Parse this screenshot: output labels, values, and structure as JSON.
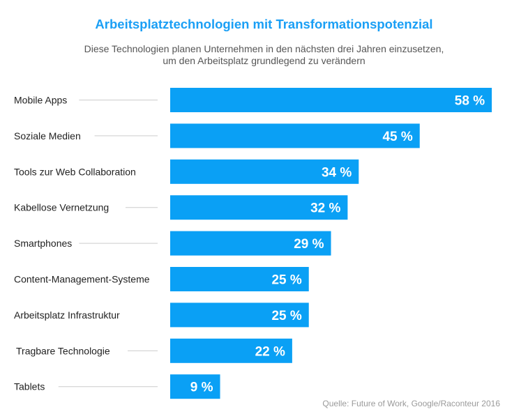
{
  "chart_data": {
    "type": "bar",
    "orientation": "horizontal",
    "title": "Arbeitsplatztechnologien mit Transformationspotenzial",
    "subtitle": [
      "Diese Technologien planen Unternehmen in den nächsten drei Jahren einzusetzen,",
      "um den Arbeitsplatz grundlegend zu verändern"
    ],
    "categories": [
      "Mobile Apps",
      "Soziale Medien",
      "Tools zur Web Collaboration",
      "Kabellose Vernetzung",
      "Smartphones",
      "Content-Management-Systeme",
      "Arbeitsplatz Infrastruktur",
      "Tragbare Technologie",
      "Tablets"
    ],
    "values": [
      58,
      45,
      34,
      32,
      29,
      25,
      25,
      22,
      9
    ],
    "value_labels": [
      "58 %",
      "45 %",
      "34 %",
      "32 %",
      "29 %",
      "25 %",
      "25 %",
      "22 %",
      "9 %"
    ],
    "unit": "%",
    "bar_color": "#0aa0f5",
    "grid": false,
    "source": "Quelle: Future of Work, Google/Raconteur 2016"
  }
}
